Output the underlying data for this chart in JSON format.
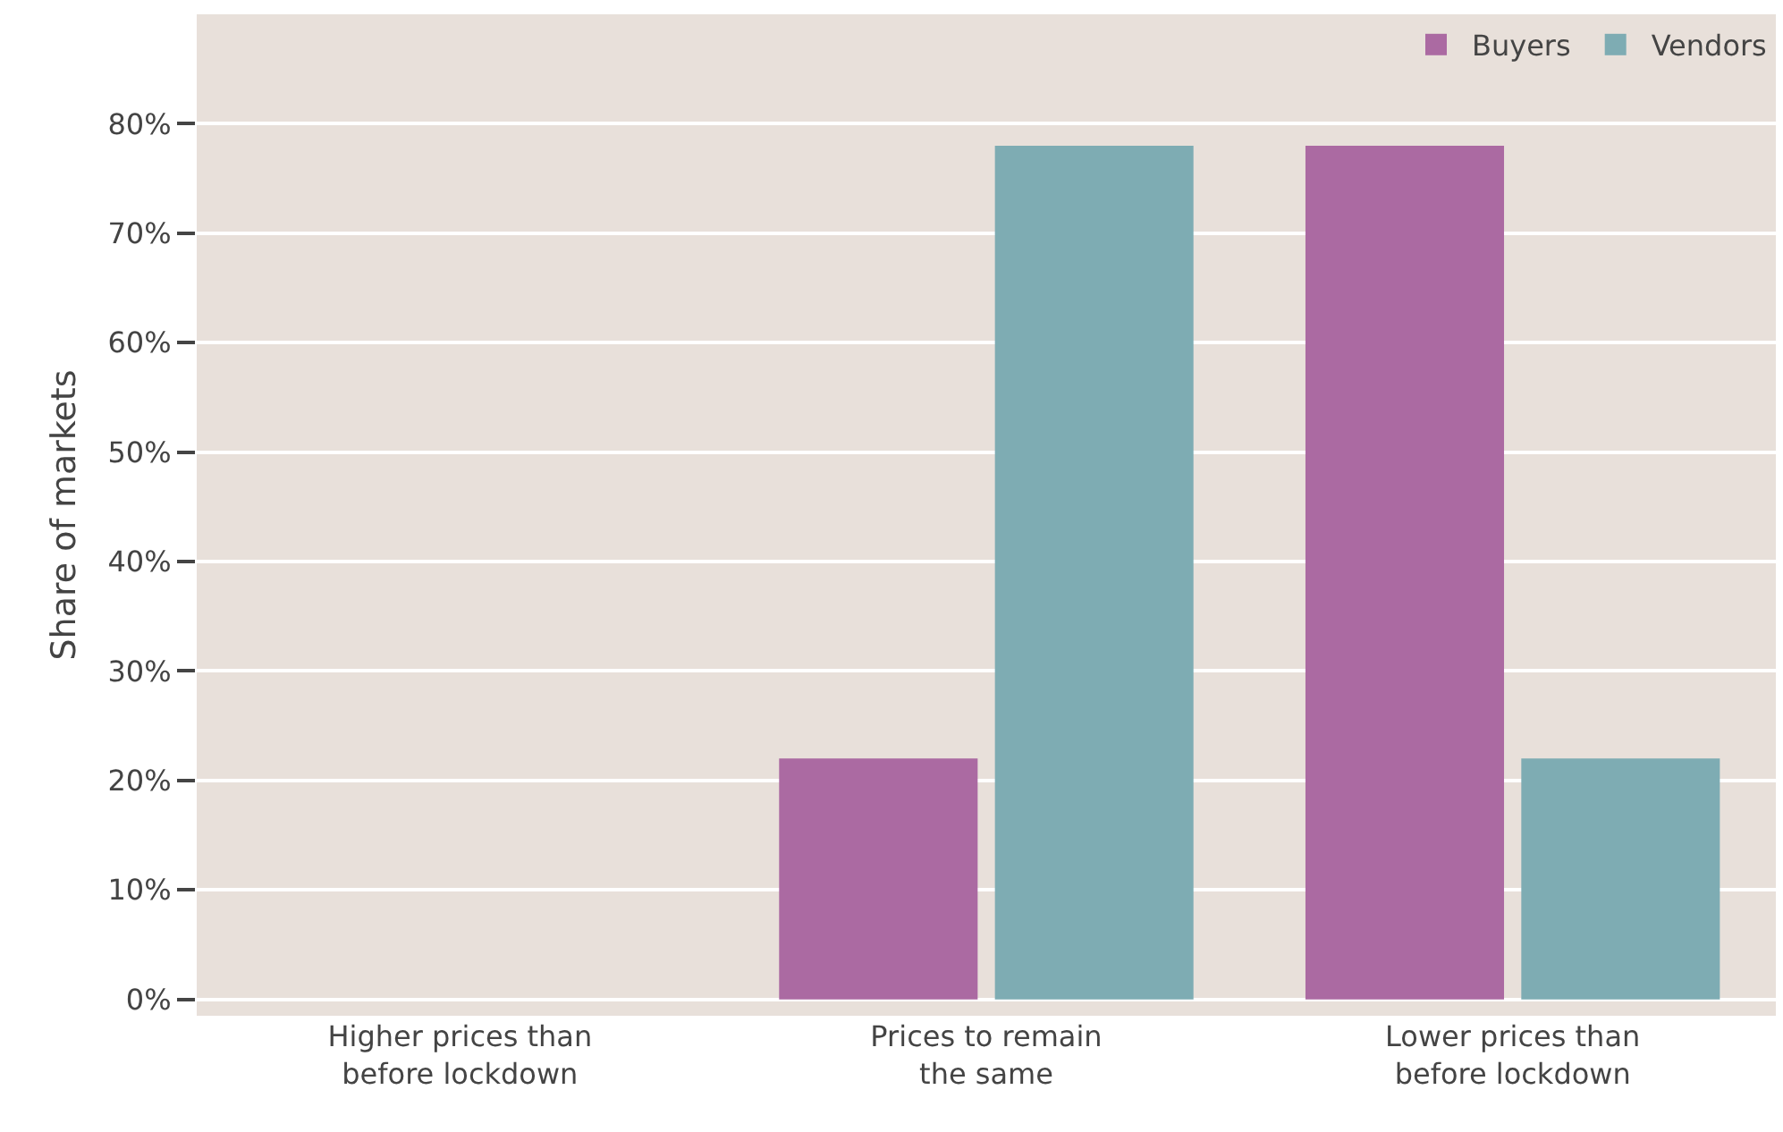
{
  "chart_data": {
    "type": "bar",
    "ylabel": "Share of markets",
    "categories": [
      "Higher prices than\nbefore lockdown",
      "Prices to remain\nthe same",
      "Lower prices than\nbefore lockdown"
    ],
    "series": [
      {
        "name": "Buyers",
        "color": "#ab6aa2",
        "values": [
          0,
          22,
          78
        ]
      },
      {
        "name": "Vendors",
        "color": "#7eacb3",
        "values": [
          0,
          78,
          22
        ]
      }
    ],
    "ylim": [
      -1.5,
      90
    ],
    "yticks": [
      {
        "value": 0,
        "label": "0%"
      },
      {
        "value": 10,
        "label": "10%"
      },
      {
        "value": 20,
        "label": "20%"
      },
      {
        "value": 30,
        "label": "30%"
      },
      {
        "value": 40,
        "label": "40%"
      },
      {
        "value": 50,
        "label": "50%"
      },
      {
        "value": 60,
        "label": "60%"
      },
      {
        "value": 70,
        "label": "70%"
      },
      {
        "value": 80,
        "label": "80%"
      }
    ],
    "grid": "y",
    "legend": "top right"
  }
}
